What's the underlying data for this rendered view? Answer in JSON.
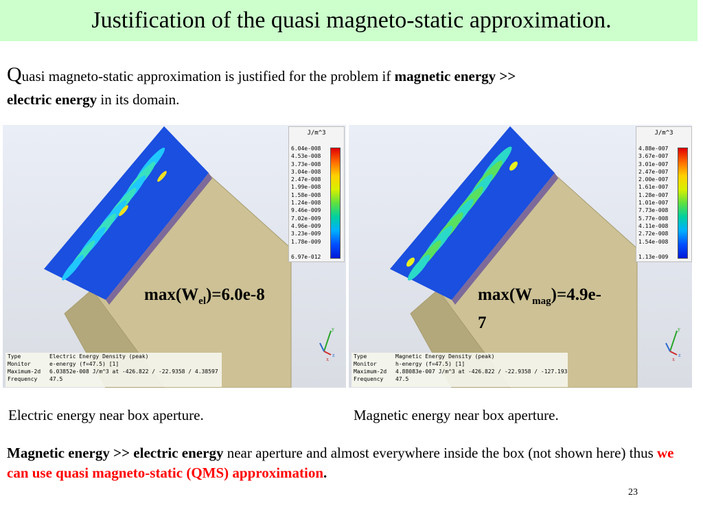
{
  "title": "Justification of the quasi magneto-static approximation.",
  "intro": {
    "first_letter": "Q",
    "text_rest": "uasi magneto-static approximation is justified for the problem if",
    "bold_1": "magnetic energy >>",
    "bold_2": "electric energy",
    "tail": "in its domain."
  },
  "panels": [
    {
      "legend_unit": "J/m^3",
      "legend_ticks": [
        "6.04e-008",
        "4.53e-008",
        "3.73e-008",
        "3.04e-008",
        "2.47e-008",
        "1.99e-008",
        "1.58e-008",
        "1.24e-008",
        "9.46e-009",
        "7.02e-009",
        "4.96e-009",
        "3.23e-009",
        "1.78e-009"
      ],
      "legend_min": "6.97e-012",
      "max_label_prefix": "max(W",
      "max_label_sub": "el",
      "max_label_suffix": ")=6.0e-8",
      "info": {
        "type_key": "Type",
        "type_val": "Electric Energy Density (peak)",
        "monitor_key": "Monitor",
        "monitor_val": "e-energy (f=47.5) [1]",
        "max_key": "Maximum-2d",
        "max_val": "6.03852e-008 J/m^3 at -426.822 / -22.9358 / 4.38597",
        "freq_key": "Frequency",
        "freq_val": "47.5"
      },
      "caption": "Electric energy near box aperture."
    },
    {
      "legend_unit": "J/m^3",
      "legend_ticks": [
        "4.88e-007",
        "3.67e-007",
        "3.01e-007",
        "2.47e-007",
        "2.00e-007",
        "1.61e-007",
        "1.28e-007",
        "1.01e-007",
        "7.73e-008",
        "5.77e-008",
        "4.11e-008",
        "2.72e-008",
        "1.54e-008"
      ],
      "legend_min": "1.13e-009",
      "max_label_prefix": "max(W",
      "max_label_sub": "mag",
      "max_label_suffix": ")=4.9e-",
      "max_label_line2": "7",
      "info": {
        "type_key": "Type",
        "type_val": "Magnetic Energy Density (peak)",
        "monitor_key": "Monitor",
        "monitor_val": "h-energy (f=47.5) [1]",
        "max_key": "Maximum-2d",
        "max_val": "4.88083e-007 J/m^3 at -426.822 / -22.9358 / -127.193",
        "freq_key": "Frequency",
        "freq_val": "47.5"
      },
      "caption": "Magnetic energy near box aperture."
    }
  ],
  "conclusion": {
    "bold": "Magnetic energy >> electric energy",
    "text": "near aperture and almost everywhere inside the box (not shown here) thus",
    "red": "we can use quasi magneto-static (QMS) approximation",
    "end": "."
  },
  "page_number": "23",
  "colors": {
    "title_bg": "#ccffcc",
    "box_face": "#cdc195",
    "field_blue": "#1a4fe0",
    "highlight": "#ff0000"
  },
  "axis_labels": {
    "y": "y",
    "x": "x",
    "z": "z"
  }
}
